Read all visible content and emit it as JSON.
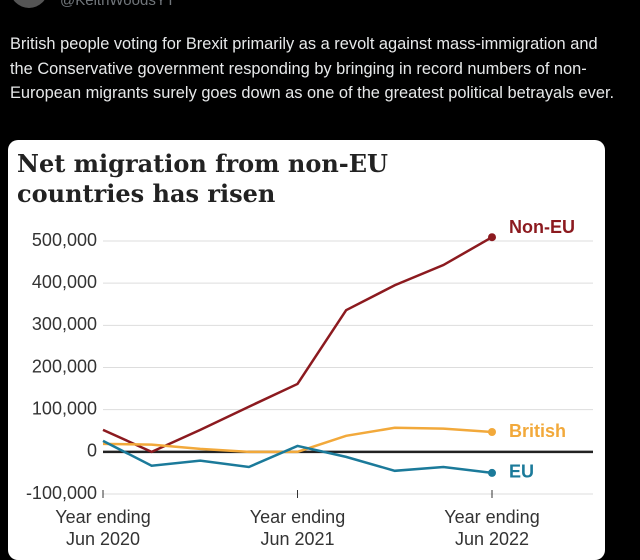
{
  "tweet": {
    "handle": "@KeithWoodsYT",
    "text": "British people voting for Brexit primarily as a revolt against mass-immigration and the Conservative government responding by bringing in record numbers of non-European migrants surely goes down as one of the greatest political betrayals ever."
  },
  "chart_data": {
    "type": "line",
    "title": "Net migration from non-EU countries has risen",
    "categories": [
      "Year ending Jun 2020",
      null,
      null,
      null,
      "Year ending Jun 2021",
      null,
      null,
      null,
      "Year ending Jun 2022"
    ],
    "series": [
      {
        "name": "Non-EU",
        "color": "#8c1a1f",
        "values": [
          52000,
          0,
          52000,
          107000,
          161000,
          336000,
          395000,
          443000,
          509000
        ]
      },
      {
        "name": "British",
        "color": "#f2a93b",
        "values": [
          19000,
          17000,
          7000,
          0,
          0,
          38000,
          57000,
          55000,
          47000
        ]
      },
      {
        "name": "EU",
        "color": "#1b7a9a",
        "values": [
          26000,
          -33000,
          -21000,
          -36000,
          14000,
          -12000,
          -45000,
          -36000,
          -50000
        ]
      }
    ],
    "ylim": [
      -100000,
      500000
    ],
    "yticks": [
      {
        "value": -100000,
        "label": "-100,000"
      },
      0,
      {
        "value": 100000,
        "label": "100,000"
      },
      {
        "value": 200000,
        "label": "200,000"
      },
      {
        "value": 300000,
        "label": "300,000"
      },
      {
        "value": 400000,
        "label": "400,000"
      },
      {
        "value": 500000,
        "label": "500,000"
      }
    ],
    "grid": true
  }
}
